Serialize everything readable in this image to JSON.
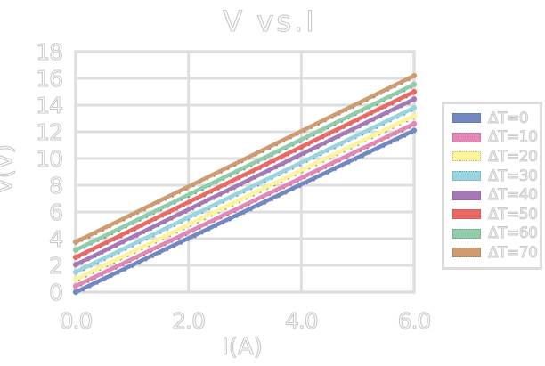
{
  "page": {
    "background": "#ffffff"
  },
  "chart_data": {
    "type": "line",
    "title": "V vs.I",
    "xlabel": "I(A)",
    "ylabel": "V(V)",
    "xlim": [
      0,
      6
    ],
    "ylim": [
      0,
      18
    ],
    "grid": true,
    "legend_position": "right",
    "x_tick_values": [
      0,
      2,
      4,
      6
    ],
    "x_tick_labels": [
      "0.0",
      "2.0",
      "4.0",
      "6.0"
    ],
    "y_tick_values": [
      0,
      2,
      4,
      6,
      8,
      10,
      12,
      14,
      16,
      18
    ],
    "y_tick_labels": [
      "0",
      "2",
      "4",
      "6",
      "8",
      "10",
      "12",
      "14",
      "16",
      "18"
    ],
    "x": [
      0,
      6
    ],
    "series": [
      {
        "name": "ΔT=0",
        "color": "#7188c3",
        "values": [
          0.0,
          12.1
        ]
      },
      {
        "name": "ΔT=10",
        "color": "#e287b6",
        "values": [
          0.45,
          12.6
        ]
      },
      {
        "name": "ΔT=20",
        "color": "#fbf49b",
        "values": [
          0.95,
          13.2
        ]
      },
      {
        "name": "ΔT=30",
        "color": "#98d5e0",
        "values": [
          1.5,
          13.8
        ]
      },
      {
        "name": "ΔT=40",
        "color": "#a678b6",
        "values": [
          2.05,
          14.45
        ]
      },
      {
        "name": "ΔT=50",
        "color": "#ea6964",
        "values": [
          2.6,
          15.0
        ]
      },
      {
        "name": "ΔT=60",
        "color": "#90cbaa",
        "values": [
          3.15,
          15.55
        ]
      },
      {
        "name": "ΔT=70",
        "color": "#cf9b70",
        "values": [
          3.75,
          16.2
        ]
      }
    ],
    "style": {
      "grid_color": "#dedede",
      "legend_border_color": "#dcdcdc",
      "text_outline_color": "#c9c9c9",
      "sketch_dot_color": "#222222"
    }
  }
}
